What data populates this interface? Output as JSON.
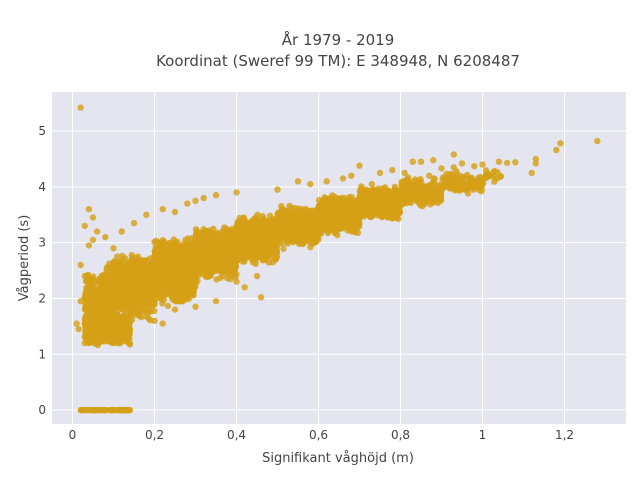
{
  "chart_data": {
    "type": "scatter",
    "title_line1": "År 1979 - 2019",
    "title_line2": "Koordinat (Sweref 99 TM): E 348948, N 6208487",
    "xlabel": "Signifikant våghöjd (m)",
    "ylabel": "Vågperiod (s)",
    "xlim": [
      -0.05,
      1.35
    ],
    "ylim": [
      -0.25,
      5.7
    ],
    "xticks": [
      0,
      0.2,
      0.4,
      0.6,
      0.8,
      1.0,
      1.2
    ],
    "xtick_labels": [
      "0",
      "0,2",
      "0,4",
      "0,6",
      "0,8",
      "1",
      "1,2"
    ],
    "yticks": [
      0,
      1,
      2,
      3,
      4,
      5
    ],
    "ytick_labels": [
      "0",
      "1",
      "2",
      "3",
      "4",
      "5"
    ],
    "grid": true,
    "legend": "none",
    "marker_color": "#D4A017",
    "plot_bg": "#E5E5EF",
    "series": [
      {
        "name": "",
        "points": [
          [
            0.02,
            5.42
          ],
          [
            1.28,
            4.82
          ],
          [
            1.19,
            4.78
          ],
          [
            1.18,
            4.66
          ],
          [
            1.13,
            4.5
          ],
          [
            1.13,
            4.42
          ],
          [
            1.12,
            4.25
          ],
          [
            1.08,
            4.44
          ],
          [
            1.06,
            4.43
          ],
          [
            1.04,
            4.45
          ],
          [
            1.03,
            4.28
          ],
          [
            1.02,
            4.2
          ],
          [
            1.0,
            4.4
          ],
          [
            0.98,
            4.37
          ],
          [
            0.97,
            4.15
          ],
          [
            0.95,
            4.42
          ],
          [
            0.93,
            4.58
          ],
          [
            0.93,
            4.35
          ],
          [
            0.92,
            4.05
          ],
          [
            0.9,
            4.33
          ],
          [
            0.88,
            4.48
          ],
          [
            0.87,
            4.2
          ],
          [
            0.85,
            4.45
          ],
          [
            0.83,
            4.45
          ],
          [
            0.81,
            4.25
          ],
          [
            0.78,
            4.3
          ],
          [
            0.75,
            4.25
          ],
          [
            0.73,
            4.05
          ],
          [
            0.7,
            4.38
          ],
          [
            0.68,
            4.2
          ],
          [
            0.66,
            4.15
          ],
          [
            0.62,
            4.1
          ],
          [
            0.58,
            4.05
          ],
          [
            0.55,
            4.1
          ],
          [
            0.5,
            3.95
          ],
          [
            0.46,
            2.02
          ],
          [
            0.42,
            2.2
          ],
          [
            0.4,
            2.3
          ],
          [
            0.3,
            1.85
          ],
          [
            0.25,
            1.8
          ],
          [
            0.22,
            1.55
          ],
          [
            0.2,
            1.6
          ],
          [
            0.35,
            1.95
          ],
          [
            0.45,
            2.4
          ],
          [
            0.04,
            3.6
          ],
          [
            0.03,
            3.3
          ],
          [
            0.05,
            3.45
          ],
          [
            0.02,
            2.6
          ],
          [
            0.03,
            2.4
          ],
          [
            0.04,
            2.95
          ],
          [
            0.02,
            1.95
          ],
          [
            0.03,
            1.2
          ],
          [
            0.05,
            3.05
          ],
          [
            0.04,
            2.2
          ],
          [
            0.12,
            3.2
          ],
          [
            0.15,
            3.35
          ],
          [
            0.18,
            3.5
          ],
          [
            0.25,
            3.55
          ],
          [
            0.3,
            3.75
          ],
          [
            0.35,
            3.85
          ],
          [
            0.4,
            3.9
          ],
          [
            0.22,
            3.6
          ],
          [
            0.28,
            3.7
          ],
          [
            0.32,
            3.8
          ],
          [
            0.02,
            0.0
          ],
          [
            0.05,
            0.0
          ],
          [
            0.08,
            0.0
          ],
          [
            0.1,
            0.0
          ],
          [
            0.12,
            0.0
          ],
          [
            0.14,
            0.0
          ],
          [
            0.08,
            3.1
          ],
          [
            0.1,
            2.9
          ],
          [
            0.06,
            3.2
          ],
          [
            0.01,
            1.55
          ],
          [
            0.015,
            1.45
          ]
        ],
        "bands": [
          {
            "x_range": [
              0.03,
              0.14
            ],
            "y_center": 1.45,
            "y_spread": 0.32,
            "count": 1100
          },
          {
            "x_range": [
              0.03,
              0.1
            ],
            "y_center": 1.95,
            "y_spread": 0.55,
            "count": 500
          },
          {
            "x_range": [
              0.08,
              0.2
            ],
            "y_center": 2.15,
            "y_spread": 0.6,
            "count": 900
          },
          {
            "x_range": [
              0.1,
              0.3
            ],
            "y_center": 2.35,
            "y_spread": 0.55,
            "count": 1200
          },
          {
            "x_range": [
              0.2,
              0.4
            ],
            "y_center": 2.7,
            "y_spread": 0.45,
            "count": 1200
          },
          {
            "x_range": [
              0.3,
              0.5
            ],
            "y_center": 2.95,
            "y_spread": 0.38,
            "count": 1100
          },
          {
            "x_range": [
              0.4,
              0.6
            ],
            "y_center": 3.2,
            "y_spread": 0.32,
            "count": 1000
          },
          {
            "x_range": [
              0.5,
              0.7
            ],
            "y_center": 3.4,
            "y_spread": 0.28,
            "count": 900
          },
          {
            "x_range": [
              0.6,
              0.8
            ],
            "y_center": 3.62,
            "y_spread": 0.24,
            "count": 700
          },
          {
            "x_range": [
              0.7,
              0.9
            ],
            "y_center": 3.82,
            "y_spread": 0.22,
            "count": 450
          },
          {
            "x_range": [
              0.8,
              1.0
            ],
            "y_center": 4.02,
            "y_spread": 0.2,
            "count": 180
          },
          {
            "x_range": [
              0.9,
              1.05
            ],
            "y_center": 4.2,
            "y_spread": 0.18,
            "count": 40
          }
        ]
      }
    ]
  }
}
